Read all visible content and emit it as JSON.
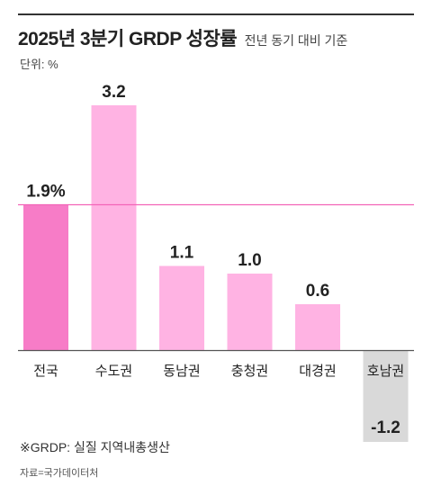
{
  "header": {
    "title": "2025년 3분기 GRDP 성장률",
    "subtitle": "전년 동기 대비 기준",
    "unit": "단위: %"
  },
  "footer": {
    "note": "※GRDP: 실질 지역내총생산",
    "source": "자료=국가데이터처"
  },
  "colors": {
    "national": "#f77cc7",
    "region": "#ffb3e3",
    "negative": "#d9d9d9",
    "reference_line": "#f264b8",
    "baseline": "#555555"
  },
  "chart_data": {
    "type": "bar",
    "categories": [
      "전국",
      "수도권",
      "동남권",
      "충청권",
      "대경권",
      "호남권"
    ],
    "values": [
      1.9,
      3.2,
      1.1,
      1.0,
      0.6,
      -1.2
    ],
    "value_labels": [
      "1.9%",
      "3.2",
      "1.1",
      "1.0",
      "0.6",
      "-1.2"
    ],
    "reference_line": 1.9,
    "title": "2025년 3분기 GRDP 성장률",
    "subtitle": "전년 동기 대비 기준",
    "ylabel": "단위: %",
    "grid": false,
    "legend": "none"
  }
}
